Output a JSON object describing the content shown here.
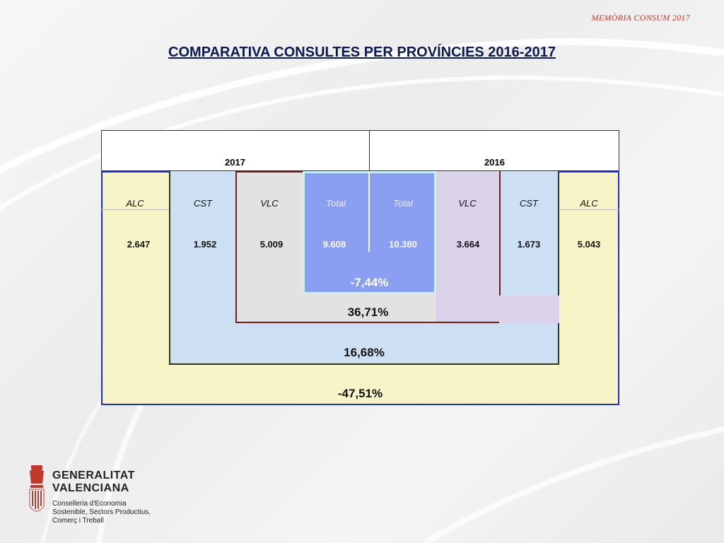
{
  "header": {
    "note": "MEMÒRIA CONSUM 2017"
  },
  "title": "COMPARATIVA CONSULTES PER PROVÍNCIES 2016-2017",
  "table": {
    "years": {
      "left": "2017",
      "right": "2016"
    },
    "columns": [
      {
        "label": "ALC",
        "value": "2.647"
      },
      {
        "label": "CST",
        "value": "1.952"
      },
      {
        "label": "VLC",
        "value": "5.009"
      },
      {
        "label": "Total",
        "value": "9.608"
      },
      {
        "label": "Total",
        "value": "10.380"
      },
      {
        "label": "VLC",
        "value": "3.664"
      },
      {
        "label": "CST",
        "value": "1.673"
      },
      {
        "label": "ALC",
        "value": "5.043"
      }
    ],
    "percentages": {
      "total": "-7,44%",
      "vlc": "36,71%",
      "cst": "16,68%",
      "alc": "-47,51%"
    },
    "colors": {
      "alc": "#f7f4c8",
      "cst": "#cde0f3",
      "vlc": "#e2e2e2",
      "total": "#8a9ef2",
      "vlc_right": "#d9d2e9",
      "border_blue": "#1f2fd6",
      "border_dark": "#333324",
      "border_red": "#7a1a1a",
      "border_light": "#c8f0f5"
    }
  },
  "logo": {
    "line1": "GENERALITAT",
    "line2": "VALENCIANA",
    "sub1": "Conselleria d'Economia",
    "sub2": "Sostenible, Sectors Productius,",
    "sub3": "Comerç i Treball"
  }
}
